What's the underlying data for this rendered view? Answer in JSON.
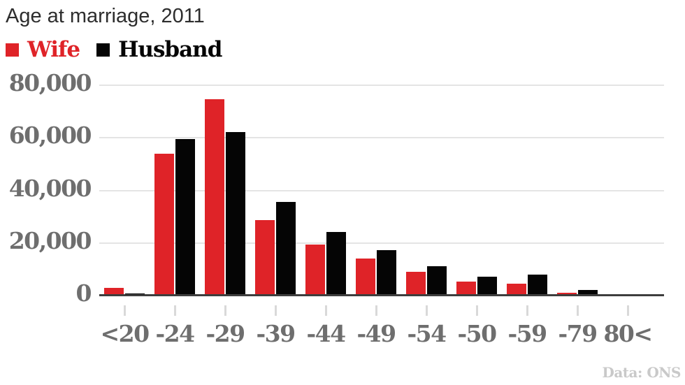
{
  "title": "Age at marriage, 2011",
  "source_note": "Data: ONS",
  "colors": {
    "wife_red": "#df2328",
    "husband_black": "#050505",
    "title_text": "#2d2d2d",
    "axis_text_gray": "#6e6e6e",
    "gridline_gray": "#e4e4e4",
    "baseline_dark": "#3e3e3e",
    "tick_gray": "#d9d9d9",
    "source_gray": "#c9c9c9",
    "background": "#ffffff"
  },
  "legend": {
    "items": [
      {
        "label": "Wife",
        "color": "#df2328"
      },
      {
        "label": "Husband",
        "color": "#050505"
      }
    ]
  },
  "chart_data": {
    "type": "bar",
    "title": "Age at marriage, 2011",
    "xlabel": "",
    "ylabel": "",
    "categories": [
      "<20",
      "-24",
      "-29",
      "-39",
      "-44",
      "-49",
      "-54",
      "-50",
      "-59",
      "-79",
      "80<"
    ],
    "series": [
      {
        "name": "Wife",
        "color": "#df2328",
        "values": [
          3000,
          54000,
          74800,
          28700,
          19400,
          14100,
          9000,
          5200,
          4500,
          1100,
          300
        ]
      },
      {
        "name": "Husband",
        "color": "#050505",
        "values": [
          850,
          59600,
          62300,
          35600,
          24300,
          17200,
          11200,
          7200,
          8000,
          2000,
          600
        ]
      }
    ],
    "ylim": [
      0,
      80000
    ],
    "yticks": [
      0,
      20000,
      40000,
      60000,
      80000
    ],
    "ytick_labels": [
      "0",
      "20,000",
      "40,000",
      "60,000",
      "80,000"
    ],
    "grid": true,
    "legend_position": "top-left",
    "source": "Data: ONS"
  }
}
